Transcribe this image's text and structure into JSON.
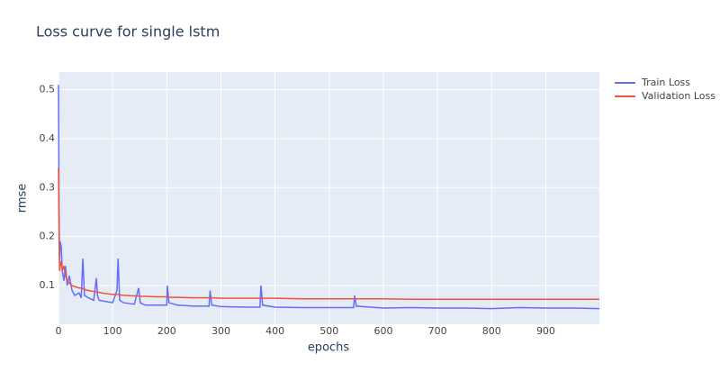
{
  "chart_data": {
    "type": "line",
    "title": "Loss curve for single lstm",
    "xlabel": "epochs",
    "ylabel": "rmse",
    "x": [
      0,
      1,
      2,
      3,
      5,
      7,
      10,
      13,
      16,
      20,
      25,
      30,
      38,
      42,
      45,
      48,
      55,
      65,
      70,
      72,
      75,
      85,
      100,
      108,
      110,
      113,
      120,
      140,
      148,
      151,
      160,
      180,
      200,
      201,
      204,
      220,
      250,
      278,
      280,
      283,
      300,
      350,
      372,
      374,
      377,
      400,
      450,
      500,
      545,
      547,
      550,
      600,
      650,
      700,
      750,
      800,
      850,
      900,
      950,
      999
    ],
    "series": [
      {
        "name": "Train Loss",
        "color": "#636efa",
        "values": [
          0.51,
          0.25,
          0.15,
          0.19,
          0.18,
          0.13,
          0.11,
          0.14,
          0.1,
          0.12,
          0.09,
          0.08,
          0.085,
          0.075,
          0.155,
          0.08,
          0.075,
          0.07,
          0.115,
          0.08,
          0.07,
          0.068,
          0.065,
          0.09,
          0.155,
          0.07,
          0.065,
          0.062,
          0.095,
          0.065,
          0.06,
          0.06,
          0.06,
          0.1,
          0.065,
          0.06,
          0.058,
          0.058,
          0.09,
          0.06,
          0.057,
          0.056,
          0.056,
          0.1,
          0.06,
          0.056,
          0.055,
          0.055,
          0.055,
          0.08,
          0.058,
          0.054,
          0.055,
          0.054,
          0.054,
          0.053,
          0.055,
          0.054,
          0.054,
          0.053
        ]
      },
      {
        "name": "Validation Loss",
        "color": "#EF553B",
        "values": [
          0.34,
          0.2,
          0.13,
          0.14,
          0.15,
          0.13,
          0.14,
          0.12,
          0.11,
          0.105,
          0.1,
          0.098,
          0.095,
          0.095,
          0.094,
          0.092,
          0.09,
          0.088,
          0.087,
          0.087,
          0.086,
          0.084,
          0.082,
          0.082,
          0.082,
          0.081,
          0.08,
          0.079,
          0.079,
          0.078,
          0.078,
          0.077,
          0.077,
          0.077,
          0.076,
          0.076,
          0.075,
          0.075,
          0.075,
          0.075,
          0.074,
          0.074,
          0.074,
          0.074,
          0.074,
          0.074,
          0.073,
          0.073,
          0.073,
          0.073,
          0.073,
          0.073,
          0.072,
          0.072,
          0.072,
          0.072,
          0.072,
          0.072,
          0.072,
          0.072
        ]
      }
    ],
    "xlim": [
      0,
      999
    ],
    "ylim": [
      0.021,
      0.536
    ],
    "xticks": [
      0,
      100,
      200,
      300,
      400,
      500,
      600,
      700,
      800,
      900
    ],
    "yticks": [
      0.1,
      0.2,
      0.3,
      0.4,
      0.5
    ],
    "grid": true,
    "legend": "top-right"
  }
}
